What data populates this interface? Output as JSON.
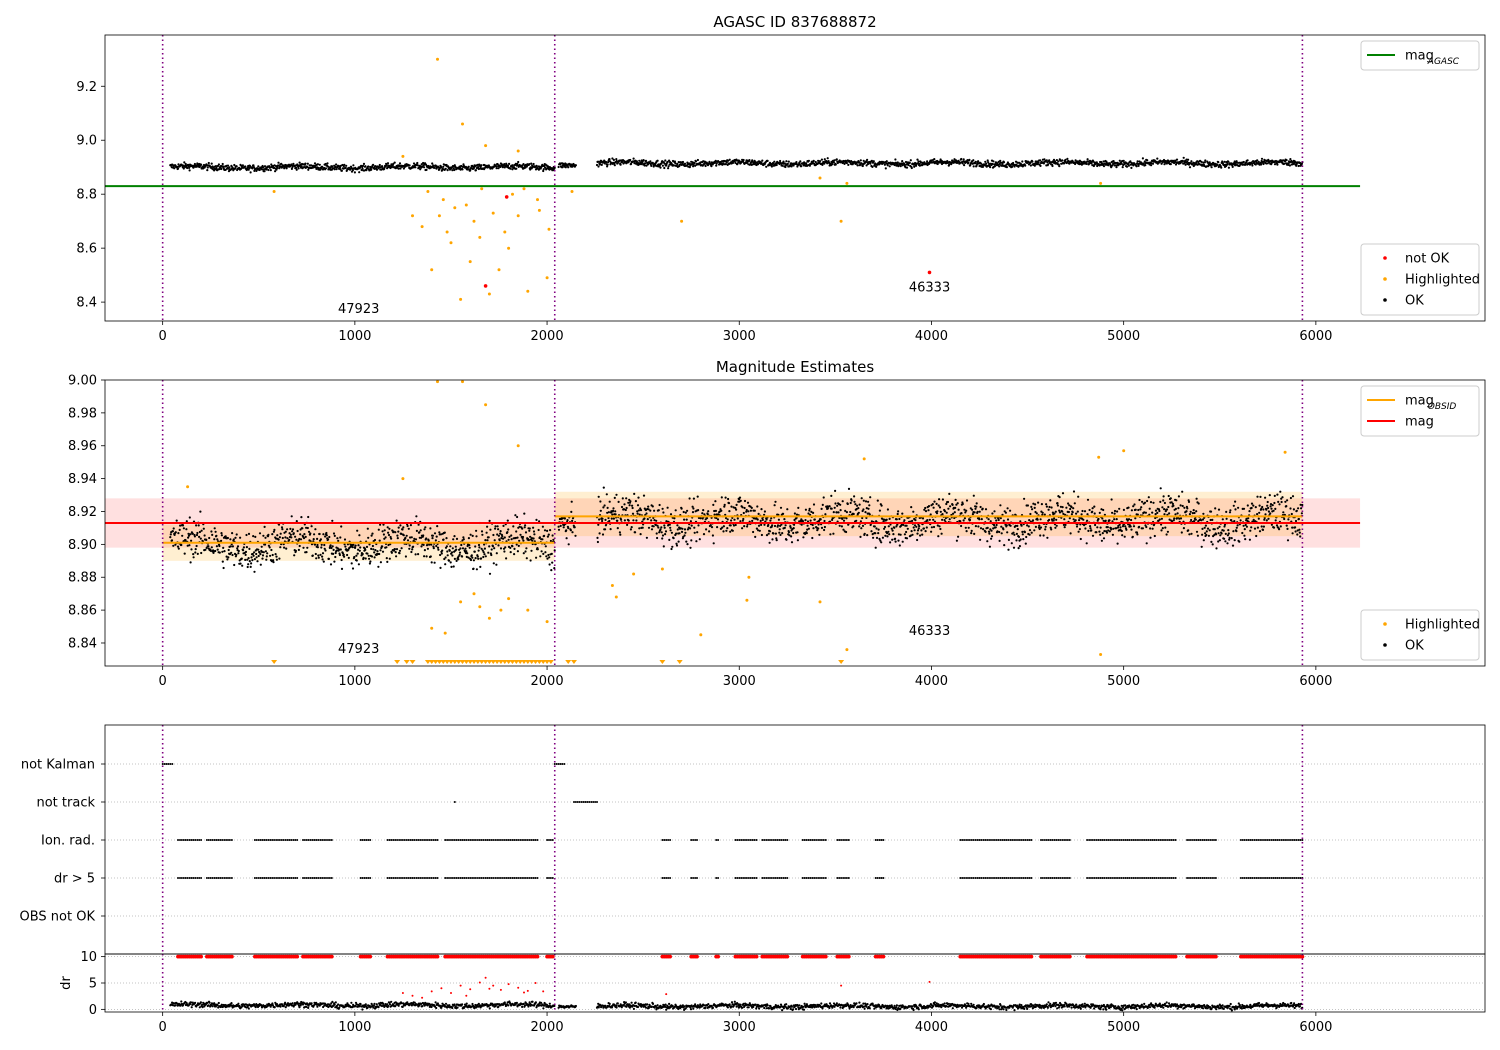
{
  "colors": {
    "ok": "#000000",
    "highlighted": "#ffa500",
    "not_ok": "#ff0000",
    "agasc_line": "#008000",
    "mag_line": "#ff0000",
    "obsid_line": "#ffa500",
    "obs_boundary": "#800080",
    "grid": "#b0b0b0"
  },
  "chart_data": [
    {
      "type": "scatter",
      "title": "AGASC ID 837688872",
      "xlim": [
        -300,
        6880
      ],
      "ylim": [
        8.33,
        9.39
      ],
      "xticks": [
        0,
        1000,
        2000,
        3000,
        4000,
        5000,
        6000
      ],
      "yticks": [
        8.4,
        8.6,
        8.8,
        9.0,
        9.2
      ],
      "obs_boundaries": [
        0,
        2040,
        5930
      ],
      "obsid_labels": [
        {
          "text": "47923",
          "x": 1020,
          "y": 8.36
        },
        {
          "text": "46333",
          "x": 3990,
          "y": 8.44
        }
      ],
      "mag_agasc": {
        "value": 8.83,
        "x_range": [
          -300,
          6230
        ]
      },
      "segments": [
        {
          "x_range": [
            40,
            2040
          ],
          "y_mean": 8.9,
          "spread": 0.012
        },
        {
          "x_range": [
            2060,
            2150
          ],
          "y_mean": 8.91,
          "spread": 0.01
        },
        {
          "x_range": [
            2260,
            5930
          ],
          "y_mean": 8.915,
          "spread": 0.012
        }
      ],
      "highlighted": [
        [
          1430,
          9.3
        ],
        [
          1560,
          9.06
        ],
        [
          1680,
          8.98
        ],
        [
          1850,
          8.96
        ],
        [
          1250,
          8.94
        ],
        [
          1300,
          8.72
        ],
        [
          1350,
          8.68
        ],
        [
          1400,
          8.52
        ],
        [
          1440,
          8.72
        ],
        [
          1500,
          8.62
        ],
        [
          1550,
          8.41
        ],
        [
          1600,
          8.55
        ],
        [
          1650,
          8.64
        ],
        [
          1700,
          8.43
        ],
        [
          1750,
          8.52
        ],
        [
          1800,
          8.6
        ],
        [
          1850,
          8.72
        ],
        [
          1900,
          8.44
        ],
        [
          1950,
          8.78
        ],
        [
          2000,
          8.49
        ],
        [
          1380,
          8.81
        ],
        [
          1460,
          8.78
        ],
        [
          1520,
          8.75
        ],
        [
          1620,
          8.7
        ],
        [
          1720,
          8.73
        ],
        [
          1820,
          8.8
        ],
        [
          1880,
          8.82
        ],
        [
          1960,
          8.74
        ],
        [
          2010,
          8.67
        ],
        [
          2130,
          8.81
        ],
        [
          580,
          8.81
        ],
        [
          2700,
          8.7
        ],
        [
          3530,
          8.7
        ],
        [
          3560,
          8.84
        ],
        [
          3420,
          8.86
        ],
        [
          4880,
          8.84
        ],
        [
          1480,
          8.66
        ],
        [
          1580,
          8.76
        ],
        [
          1660,
          8.82
        ],
        [
          1780,
          8.66
        ]
      ],
      "not_ok": [
        [
          1680,
          8.46
        ],
        [
          1790,
          8.79
        ],
        [
          3990,
          8.51
        ]
      ],
      "legends": [
        {
          "position": "top-right",
          "entries": [
            {
              "label": "mag",
              "sub": "AGASC",
              "marker": "line",
              "color_key": "agasc_line"
            }
          ]
        },
        {
          "position": "lower-right",
          "entries": [
            {
              "label": "not OK",
              "marker": "dot",
              "color_key": "not_ok"
            },
            {
              "label": "Highlighted",
              "marker": "dot",
              "color_key": "highlighted"
            },
            {
              "label": "OK",
              "marker": "dot",
              "color_key": "ok"
            }
          ]
        }
      ]
    },
    {
      "type": "scatter",
      "title": "Magnitude Estimates",
      "xlim": [
        -300,
        6880
      ],
      "ylim": [
        8.826,
        9.0
      ],
      "xticks": [
        0,
        1000,
        2000,
        3000,
        4000,
        5000,
        6000
      ],
      "yticks": [
        8.84,
        8.86,
        8.88,
        8.9,
        8.92,
        8.94,
        8.96,
        8.98,
        9.0
      ],
      "obs_boundaries": [
        0,
        2040,
        5930
      ],
      "obsid_labels": [
        {
          "text": "47923",
          "x": 1020,
          "y": 8.834
        },
        {
          "text": "46333",
          "x": 3990,
          "y": 8.845
        }
      ],
      "mag": {
        "value": 8.913,
        "band": [
          8.898,
          8.928
        ],
        "x_range": [
          -300,
          6230
        ]
      },
      "mag_obsid": [
        {
          "x_range": [
            0,
            2040
          ],
          "value": 8.901,
          "band": [
            8.89,
            8.912
          ]
        },
        {
          "x_range": [
            2040,
            5930
          ],
          "value": 8.917,
          "band": [
            8.905,
            8.932
          ]
        }
      ],
      "segments": [
        {
          "x_range": [
            40,
            2040
          ],
          "y_mean": 8.9,
          "spread": 0.012
        },
        {
          "x_range": [
            2060,
            2150
          ],
          "y_mean": 8.915,
          "spread": 0.01
        },
        {
          "x_range": [
            2260,
            5930
          ],
          "y_mean": 8.915,
          "spread": 0.012
        }
      ],
      "highlighted": [
        [
          1430,
          8.999
        ],
        [
          1560,
          8.999
        ],
        [
          1680,
          8.985
        ],
        [
          1850,
          8.96
        ],
        [
          1250,
          8.94
        ],
        [
          130,
          8.935
        ],
        [
          4880,
          8.833
        ],
        [
          3420,
          8.865
        ],
        [
          3560,
          8.836
        ],
        [
          2800,
          8.845
        ],
        [
          2340,
          8.875
        ],
        [
          2360,
          8.868
        ],
        [
          2450,
          8.882
        ],
        [
          2600,
          8.885
        ],
        [
          3050,
          8.88
        ],
        [
          3040,
          8.866
        ],
        [
          1550,
          8.865
        ],
        [
          1620,
          8.87
        ],
        [
          1700,
          8.855
        ],
        [
          1760,
          8.86
        ],
        [
          1800,
          8.867
        ],
        [
          1900,
          8.86
        ],
        [
          1400,
          8.849
        ],
        [
          1470,
          8.846
        ],
        [
          2000,
          8.853
        ],
        [
          4870,
          8.953
        ],
        [
          5000,
          8.957
        ],
        [
          5840,
          8.956
        ],
        [
          3650,
          8.952
        ],
        [
          1650,
          8.862
        ]
      ],
      "below_limit": [
        580,
        1220,
        1270,
        1300,
        1380,
        1400,
        1420,
        1440,
        1460,
        1480,
        1500,
        1520,
        1540,
        1560,
        1580,
        1600,
        1620,
        1640,
        1660,
        1680,
        1700,
        1720,
        1740,
        1760,
        1780,
        1800,
        1820,
        1840,
        1860,
        1880,
        1900,
        1920,
        1940,
        1960,
        1980,
        2000,
        2020,
        2110,
        2140,
        2600,
        2690,
        3530
      ],
      "legends": [
        {
          "position": "top-right",
          "entries": [
            {
              "label": "mag",
              "sub": "OBSID",
              "marker": "line",
              "color_key": "obsid_line"
            },
            {
              "label": "mag",
              "marker": "line",
              "color_key": "mag_line"
            }
          ]
        },
        {
          "position": "lower-right",
          "entries": [
            {
              "label": "Highlighted",
              "marker": "dot",
              "color_key": "highlighted"
            },
            {
              "label": "OK",
              "marker": "dot",
              "color_key": "ok"
            }
          ]
        }
      ]
    },
    {
      "type": "scatter",
      "title": "",
      "xlim": [
        -300,
        6880
      ],
      "xticks": [
        0,
        1000,
        2000,
        3000,
        4000,
        5000,
        6000
      ],
      "obs_boundaries": [
        0,
        2040,
        5930
      ],
      "flags": [
        {
          "label": "not Kalman",
          "ranges": [
            [
              0,
              50
            ],
            [
              2040,
              2090
            ]
          ]
        },
        {
          "label": "not track",
          "ranges": [
            [
              1520,
              1525
            ],
            [
              2140,
              2260
            ]
          ]
        },
        {
          "label": "Ion. rad.",
          "ranges": [
            [
              80,
              200
            ],
            [
              230,
              360
            ],
            [
              480,
              700
            ],
            [
              730,
              880
            ],
            [
              1030,
              1080
            ],
            [
              1170,
              1430
            ],
            [
              1470,
              1950
            ],
            [
              2000,
              2030
            ],
            [
              2600,
              2640
            ],
            [
              2750,
              2780
            ],
            [
              2880,
              2890
            ],
            [
              2980,
              3090
            ],
            [
              3120,
              3250
            ],
            [
              3330,
              3450
            ],
            [
              3510,
              3570
            ],
            [
              3710,
              3750
            ],
            [
              4150,
              4520
            ],
            [
              4570,
              4720
            ],
            [
              4810,
              5270
            ],
            [
              5330,
              5480
            ],
            [
              5610,
              5930
            ]
          ]
        },
        {
          "label": "dr > 5",
          "ranges": [
            [
              80,
              200
            ],
            [
              230,
              360
            ],
            [
              480,
              700
            ],
            [
              730,
              880
            ],
            [
              1030,
              1080
            ],
            [
              1170,
              1430
            ],
            [
              1470,
              1950
            ],
            [
              2000,
              2030
            ],
            [
              2600,
              2640
            ],
            [
              2750,
              2780
            ],
            [
              2880,
              2890
            ],
            [
              2980,
              3090
            ],
            [
              3120,
              3250
            ],
            [
              3330,
              3450
            ],
            [
              3510,
              3570
            ],
            [
              3710,
              3750
            ],
            [
              4150,
              4520
            ],
            [
              4570,
              4720
            ],
            [
              4810,
              5270
            ],
            [
              5330,
              5480
            ],
            [
              5610,
              5930
            ]
          ]
        },
        {
          "label": "OBS not OK",
          "ranges": []
        }
      ],
      "dr": {
        "ylabel": "dr",
        "yticks": [
          0,
          5,
          10
        ],
        "ylim": [
          -0.5,
          10.5
        ],
        "clipped_value": 10,
        "segments": [
          {
            "x_range": [
              40,
              2040
            ],
            "y_mean": 0.8,
            "spread": 0.5
          },
          {
            "x_range": [
              2060,
              2150
            ],
            "y_mean": 0.6,
            "spread": 0.3
          },
          {
            "x_range": [
              2260,
              5930
            ],
            "y_mean": 0.6,
            "spread": 0.5
          }
        ],
        "outliers": [
          [
            1250,
            3.1
          ],
          [
            1300,
            2.6
          ],
          [
            1350,
            2.2
          ],
          [
            1400,
            3.4
          ],
          [
            1450,
            4.0
          ],
          [
            1500,
            3.1
          ],
          [
            1550,
            4.5
          ],
          [
            1600,
            3.8
          ],
          [
            1650,
            5.1
          ],
          [
            1680,
            6.0
          ],
          [
            1720,
            4.5
          ],
          [
            1760,
            3.7
          ],
          [
            1800,
            4.8
          ],
          [
            1850,
            4.1
          ],
          [
            1900,
            3.5
          ],
          [
            1940,
            5.0
          ],
          [
            1980,
            3.4
          ],
          [
            2620,
            2.9
          ],
          [
            3530,
            4.5
          ],
          [
            3990,
            5.2
          ],
          [
            1580,
            2.6
          ],
          [
            1700,
            3.9
          ],
          [
            1880,
            3.2
          ]
        ]
      }
    }
  ]
}
